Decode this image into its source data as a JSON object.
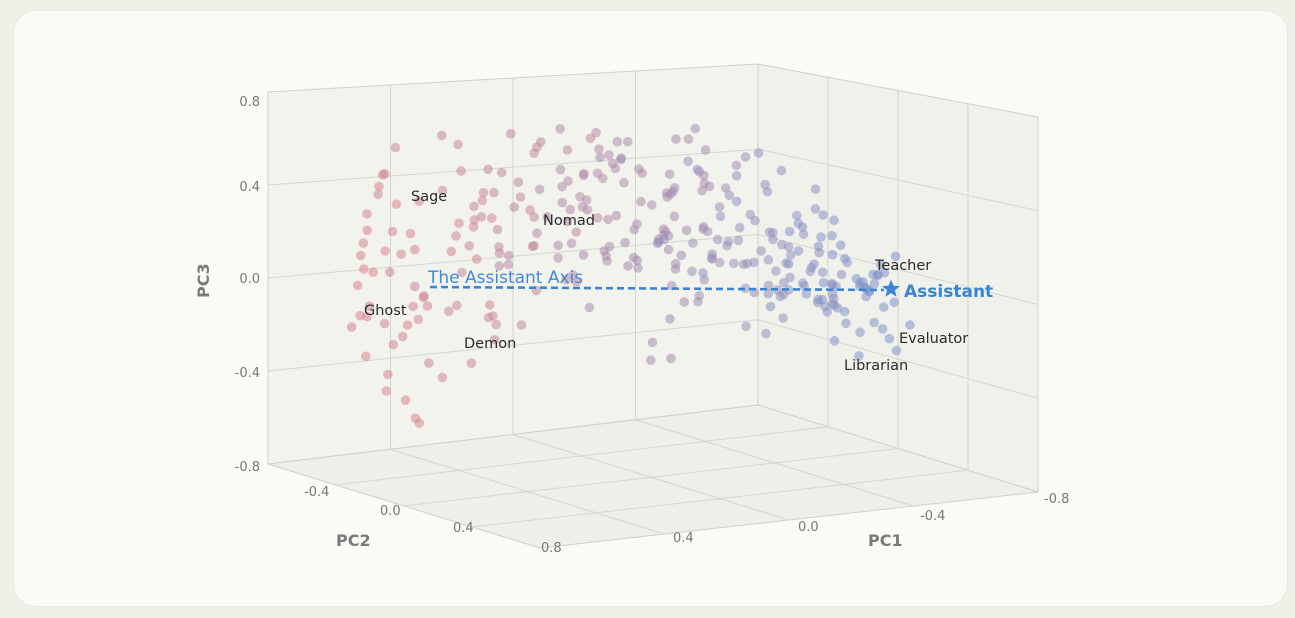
{
  "chart_data": {
    "type": "scatter",
    "title": "",
    "axes": {
      "x": {
        "label": "PC1",
        "range": [
          0.8,
          -0.8
        ],
        "ticks": [
          "0.4",
          "0.0",
          "-0.4",
          "-0.8"
        ]
      },
      "y": {
        "label": "PC2",
        "range": [
          -0.4,
          0.8
        ],
        "ticks": [
          "-0.4",
          "0.0",
          "0.4",
          "0.8"
        ]
      },
      "z": {
        "label": "PC3",
        "range": [
          -0.8,
          0.8
        ],
        "ticks": [
          "0.8",
          "0.4",
          "0.0",
          "-0.4",
          "-0.8"
        ]
      }
    },
    "grid": true,
    "color_gradient": {
      "from": "#d9848e",
      "to": "#7d94cc"
    },
    "labeled_points": [
      {
        "name": "Sage"
      },
      {
        "name": "Nomad"
      },
      {
        "name": "Ghost"
      },
      {
        "name": "Demon"
      },
      {
        "name": "Teacher"
      },
      {
        "name": "Evaluator"
      },
      {
        "name": "Librarian"
      }
    ],
    "assistant_axis": {
      "label": "The Assistant Axis",
      "color": "#3a84d6"
    },
    "assistant_point": {
      "name": "Assistant",
      "marker": "star",
      "color": "#3a84d6"
    }
  }
}
